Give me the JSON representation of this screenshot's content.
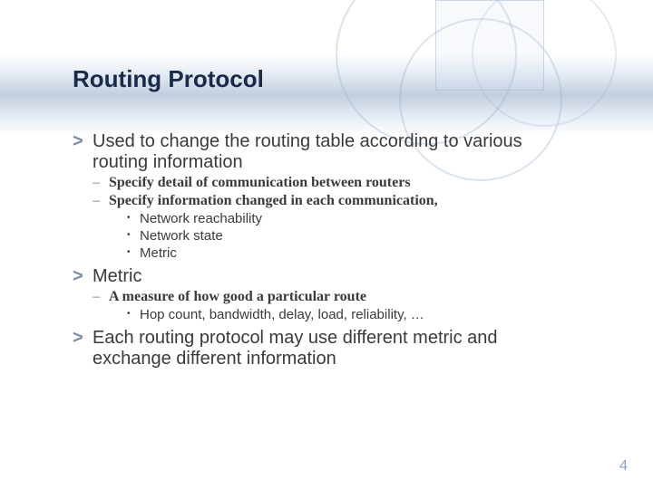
{
  "colors": {
    "title_color": "#1a2a4a",
    "body_color": "#3a3a3a",
    "chevron_color": "#7a8ba8",
    "dash_color": "#6a7a95",
    "page_color": "#8aa0c4"
  },
  "fonts": {
    "title_size": 26,
    "l1_size": 20,
    "l2_size": 16,
    "l3_size": 15,
    "page_size": 16
  },
  "title": "Routing Protocol",
  "page_number": "4",
  "bullets": [
    {
      "level": 1,
      "text": "Used to change the routing table according to various routing information"
    },
    {
      "level": 2,
      "text": "Specify detail of communication between routers"
    },
    {
      "level": 2,
      "text": "Specify information changed in each communication,"
    },
    {
      "level": 3,
      "text": "Network reachability"
    },
    {
      "level": 3,
      "text": "Network state"
    },
    {
      "level": 3,
      "text": "Metric"
    },
    {
      "level": 1,
      "text": "Metric"
    },
    {
      "level": 2,
      "text": "A measure of how good a particular route"
    },
    {
      "level": 3,
      "text": "Hop count, bandwidth, delay, load, reliability, …"
    },
    {
      "level": 1,
      "text": "Each routing protocol may use different metric and exchange different information"
    }
  ]
}
